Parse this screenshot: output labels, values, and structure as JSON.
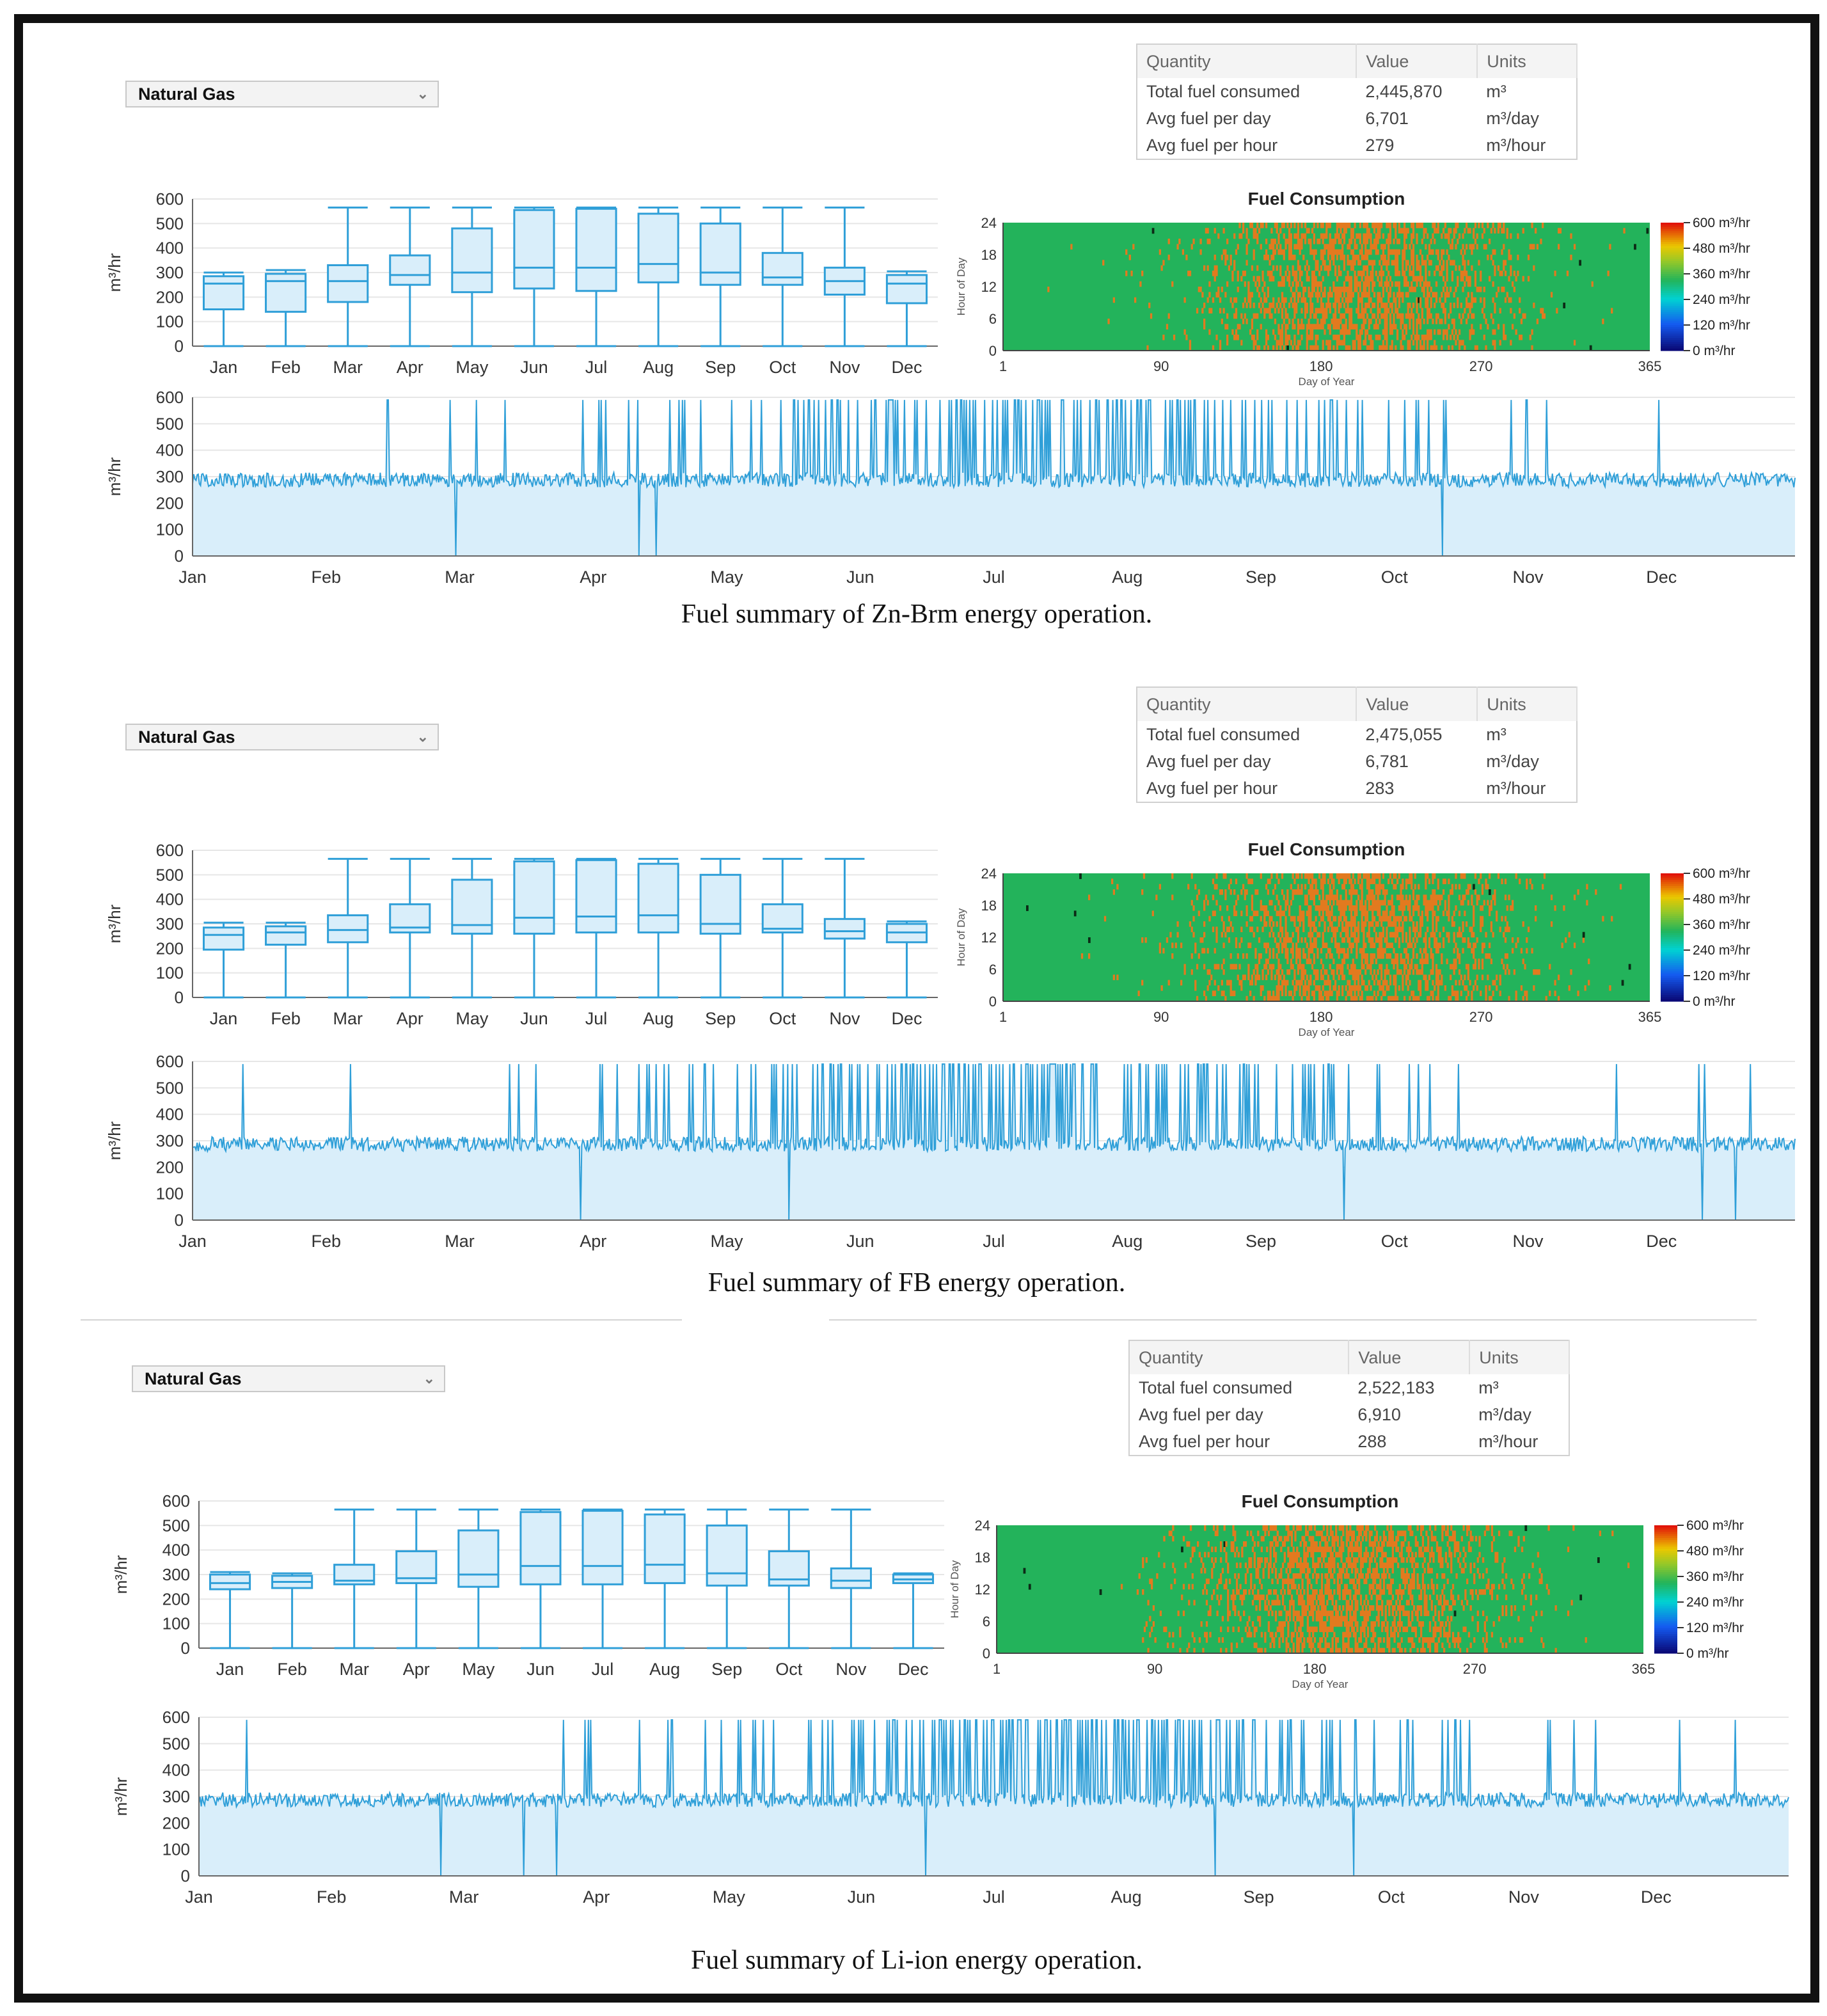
{
  "panels": [
    {
      "dropdown": "Natural Gas",
      "table": {
        "headers": [
          "Quantity",
          "Value",
          "Units"
        ],
        "rows": [
          [
            "Total fuel consumed",
            "2,445,870",
            "m³"
          ],
          [
            "Avg fuel per day",
            "6,701",
            "m³/day"
          ],
          [
            "Avg fuel per hour",
            "279",
            "m³/hour"
          ]
        ]
      },
      "caption": "Fuel summary of Zn-Brm energy operation."
    },
    {
      "dropdown": "Natural Gas",
      "table": {
        "headers": [
          "Quantity",
          "Value",
          "Units"
        ],
        "rows": [
          [
            "Total fuel consumed",
            "2,475,055",
            "m³"
          ],
          [
            "Avg fuel per day",
            "6,781",
            "m³/day"
          ],
          [
            "Avg fuel per hour",
            "283",
            "m³/hour"
          ]
        ]
      },
      "caption": "Fuel summary of FB energy operation."
    },
    {
      "dropdown": "Natural Gas",
      "table": {
        "headers": [
          "Quantity",
          "Value",
          "Units"
        ],
        "rows": [
          [
            "Total fuel consumed",
            "2,522,183",
            "m³"
          ],
          [
            "Avg fuel per day",
            "6,910",
            "m³/day"
          ],
          [
            "Avg fuel per hour",
            "288",
            "m³/hour"
          ]
        ]
      },
      "caption": "Fuel summary of Li-ion energy operation."
    }
  ],
  "chart_data": [
    {
      "type": "box",
      "title": "",
      "ylabel": "m³/hr",
      "ylim": [
        0,
        600
      ],
      "yticks": [
        0,
        100,
        200,
        300,
        400,
        500,
        600
      ],
      "categories": [
        "Jan",
        "Feb",
        "Mar",
        "Apr",
        "May",
        "Jun",
        "Jul",
        "Aug",
        "Sep",
        "Oct",
        "Nov",
        "Dec"
      ],
      "boxes": [
        [
          0,
          150,
          255,
          285,
          300
        ],
        [
          0,
          140,
          265,
          295,
          310
        ],
        [
          0,
          180,
          265,
          330,
          565
        ],
        [
          0,
          250,
          290,
          370,
          565
        ],
        [
          0,
          220,
          300,
          480,
          565
        ],
        [
          0,
          235,
          320,
          555,
          565
        ],
        [
          0,
          225,
          320,
          560,
          565
        ],
        [
          0,
          260,
          335,
          540,
          565
        ],
        [
          0,
          250,
          300,
          500,
          565
        ],
        [
          0,
          250,
          280,
          380,
          565
        ],
        [
          0,
          210,
          265,
          320,
          565
        ],
        [
          0,
          175,
          255,
          290,
          305
        ]
      ]
    },
    {
      "type": "heatmap",
      "title": "Fuel Consumption",
      "xlabel": "Day of Year",
      "ylabel": "Hour of Day",
      "xticks": [
        1,
        90,
        180,
        270,
        365
      ],
      "yticks": [
        0,
        6,
        12,
        18,
        24
      ],
      "colorbar": [
        "600 m³/hr",
        "480 m³/hr",
        "360 m³/hr",
        "240 m³/hr",
        "120 m³/hr",
        "0 m³/hr"
      ]
    },
    {
      "type": "line",
      "ylabel": "m³/hr",
      "ylim": [
        0,
        600
      ],
      "yticks": [
        0,
        100,
        200,
        300,
        400,
        500,
        600
      ],
      "months": [
        "Jan",
        "Feb",
        "Mar",
        "Apr",
        "May",
        "Jun",
        "Jul",
        "Aug",
        "Sep",
        "Oct",
        "Nov",
        "Dec"
      ],
      "baseline": 260,
      "peak": 590
    },
    {
      "type": "box",
      "title": "",
      "ylabel": "m³/hr",
      "ylim": [
        0,
        600
      ],
      "yticks": [
        0,
        100,
        200,
        300,
        400,
        500,
        600
      ],
      "categories": [
        "Jan",
        "Feb",
        "Mar",
        "Apr",
        "May",
        "Jun",
        "Jul",
        "Aug",
        "Sep",
        "Oct",
        "Nov",
        "Dec"
      ],
      "boxes": [
        [
          0,
          195,
          255,
          285,
          305
        ],
        [
          0,
          215,
          265,
          290,
          305
        ],
        [
          0,
          225,
          275,
          335,
          565
        ],
        [
          0,
          265,
          285,
          380,
          565
        ],
        [
          0,
          260,
          295,
          480,
          565
        ],
        [
          0,
          260,
          325,
          555,
          565
        ],
        [
          0,
          265,
          330,
          560,
          565
        ],
        [
          0,
          265,
          335,
          545,
          565
        ],
        [
          0,
          260,
          300,
          500,
          565
        ],
        [
          0,
          265,
          280,
          380,
          565
        ],
        [
          0,
          240,
          270,
          320,
          565
        ],
        [
          0,
          225,
          265,
          300,
          310
        ]
      ]
    },
    {
      "type": "heatmap",
      "title": "Fuel Consumption",
      "xlabel": "Day of Year",
      "ylabel": "Hour of Day",
      "xticks": [
        1,
        90,
        180,
        270,
        365
      ],
      "yticks": [
        0,
        6,
        12,
        18,
        24
      ],
      "colorbar": [
        "600 m³/hr",
        "480 m³/hr",
        "360 m³/hr",
        "240 m³/hr",
        "120 m³/hr",
        "0 m³/hr"
      ]
    },
    {
      "type": "line",
      "ylabel": "m³/hr",
      "ylim": [
        0,
        600
      ],
      "yticks": [
        0,
        100,
        200,
        300,
        400,
        500,
        600
      ],
      "months": [
        "Jan",
        "Feb",
        "Mar",
        "Apr",
        "May",
        "Jun",
        "Jul",
        "Aug",
        "Sep",
        "Oct",
        "Nov",
        "Dec"
      ],
      "baseline": 260,
      "peak": 590
    },
    {
      "type": "box",
      "title": "",
      "ylabel": "m³/hr",
      "ylim": [
        0,
        600
      ],
      "yticks": [
        0,
        100,
        200,
        300,
        400,
        500,
        600
      ],
      "categories": [
        "Jan",
        "Feb",
        "Mar",
        "Apr",
        "May",
        "Jun",
        "Jul",
        "Aug",
        "Sep",
        "Oct",
        "Nov",
        "Dec"
      ],
      "boxes": [
        [
          0,
          240,
          265,
          300,
          310
        ],
        [
          0,
          245,
          270,
          295,
          305
        ],
        [
          0,
          260,
          275,
          340,
          565
        ],
        [
          0,
          265,
          285,
          395,
          565
        ],
        [
          0,
          250,
          300,
          480,
          565
        ],
        [
          0,
          260,
          335,
          555,
          565
        ],
        [
          0,
          260,
          335,
          560,
          565
        ],
        [
          0,
          265,
          340,
          545,
          565
        ],
        [
          0,
          255,
          305,
          500,
          565
        ],
        [
          0,
          255,
          280,
          395,
          565
        ],
        [
          0,
          245,
          275,
          325,
          565
        ],
        [
          0,
          265,
          280,
          300,
          305
        ]
      ]
    },
    {
      "type": "heatmap",
      "title": "Fuel Consumption",
      "xlabel": "Day of Year",
      "ylabel": "Hour of Day",
      "xticks": [
        1,
        90,
        180,
        270,
        365
      ],
      "yticks": [
        0,
        6,
        12,
        18,
        24
      ],
      "colorbar": [
        "600 m³/hr",
        "480 m³/hr",
        "360 m³/hr",
        "240 m³/hr",
        "120 m³/hr",
        "0 m³/hr"
      ]
    },
    {
      "type": "line",
      "ylabel": "m³/hr",
      "ylim": [
        0,
        600
      ],
      "yticks": [
        0,
        100,
        200,
        300,
        400,
        500,
        600
      ],
      "months": [
        "Jan",
        "Feb",
        "Mar",
        "Apr",
        "May",
        "Jun",
        "Jul",
        "Aug",
        "Sep",
        "Oct",
        "Nov",
        "Dec"
      ],
      "baseline": 260,
      "peak": 590
    }
  ],
  "colors": {
    "series": "#2f9fd8",
    "fill": "#d9eefa",
    "grid": "#e6e6e6",
    "heat_base": "#23b35b",
    "heat_hot": "#e27a1f"
  }
}
